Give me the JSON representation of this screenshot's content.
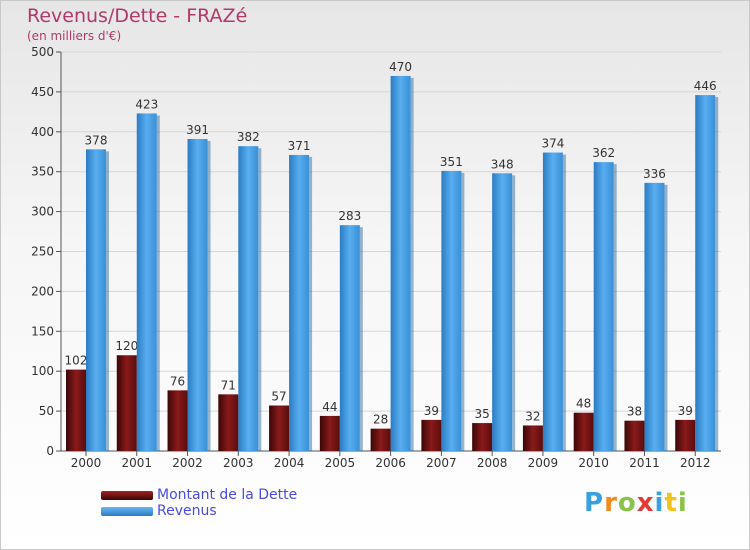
{
  "title": "Revenus/Dette - FRAZé",
  "subtitle": "(en milliers d'€)",
  "logo": {
    "text": "Proxiti",
    "colors": [
      "#3aa0e0",
      "#f08a1c",
      "#8bc34a",
      "#e53935",
      "#3aa0e0",
      "#f0c419",
      "#8bc34a"
    ]
  },
  "chart_data": {
    "type": "bar",
    "categories": [
      "2000",
      "2001",
      "2002",
      "2003",
      "2004",
      "2005",
      "2006",
      "2007",
      "2008",
      "2009",
      "2010",
      "2011",
      "2012"
    ],
    "series": [
      {
        "name": "Montant de la Dette",
        "color": "#7a1414",
        "values": [
          102,
          120,
          76,
          71,
          57,
          44,
          28,
          39,
          35,
          32,
          48,
          38,
          39
        ]
      },
      {
        "name": "Revenus",
        "color": "#4a9fe2",
        "values": [
          378,
          423,
          391,
          382,
          371,
          283,
          470,
          351,
          348,
          374,
          362,
          336,
          446
        ]
      }
    ],
    "ylim": [
      0,
      500
    ],
    "yticks": [
      0,
      50,
      100,
      150,
      200,
      250,
      300,
      350,
      400,
      450,
      500
    ],
    "grid": true,
    "legend": "bottom-left"
  }
}
